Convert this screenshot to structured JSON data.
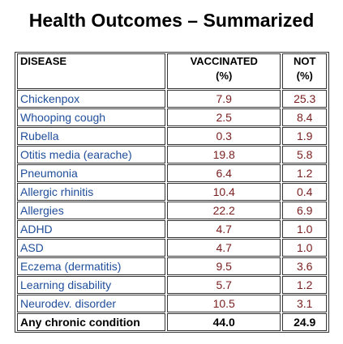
{
  "title": "Health Outcomes – Summarized",
  "table": {
    "header": [
      {
        "label": "DISEASE"
      },
      {
        "label": "VACCINATED",
        "unit": "(%)"
      },
      {
        "label": "NOT",
        "unit": "(%)"
      }
    ],
    "rows": [
      [
        "Chickenpox",
        "7.9",
        "25.3"
      ],
      [
        "Whooping cough",
        "2.5",
        "8.4"
      ],
      [
        "Rubella",
        "0.3",
        "1.9"
      ],
      [
        "Otitis media (earache)",
        "19.8",
        "5.8"
      ],
      [
        "Pneumonia",
        "6.4",
        "1.2"
      ],
      [
        "Allergic rhinitis",
        "10.4",
        "0.4"
      ],
      [
        "Allergies",
        "22.2",
        "6.9"
      ],
      [
        "ADHD",
        "4.7",
        "1.0"
      ],
      [
        "ASD",
        "4.7",
        "1.0"
      ],
      [
        "Eczema (dermatitis)",
        "9.5",
        "3.6"
      ],
      [
        "Learning disability",
        "5.7",
        "1.2"
      ],
      [
        "Neurodev. disorder",
        "10.5",
        "3.1"
      ]
    ],
    "total": [
      "Any chronic condition",
      "44.0",
      "24.9"
    ]
  }
}
